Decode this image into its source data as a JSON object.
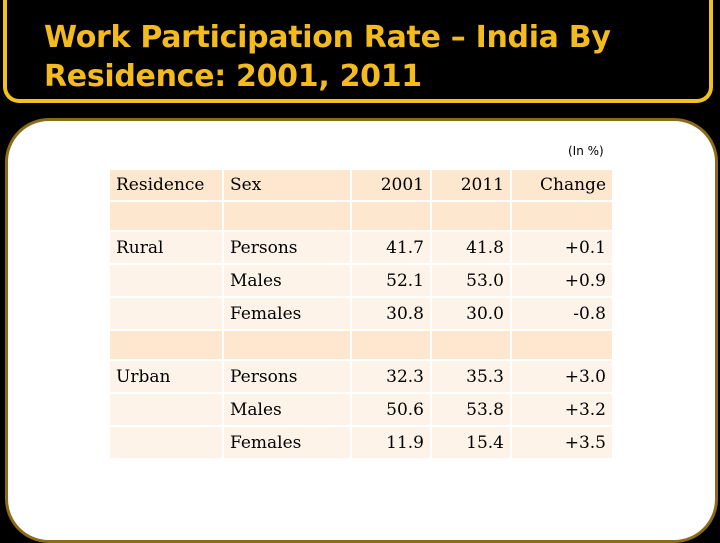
{
  "title": {
    "line1": "Work Participation Rate – India By",
    "line2": "Residence: 2001, 2011"
  },
  "unit_note": "(In %)",
  "table": {
    "headers": [
      "Residence",
      "Sex",
      "2001",
      "2011",
      "Change"
    ],
    "groups": [
      {
        "residence": "Rural",
        "rows": [
          {
            "sex": "Persons",
            "y2001": "41.7",
            "y2011": "41.8",
            "change": "+0.1"
          },
          {
            "sex": "Males",
            "y2001": "52.1",
            "y2011": "53.0",
            "change": "+0.9"
          },
          {
            "sex": "Females",
            "y2001": "30.8",
            "y2011": "30.0",
            "change": "-0.8"
          }
        ]
      },
      {
        "residence": "Urban",
        "rows": [
          {
            "sex": "Persons",
            "y2001": "32.3",
            "y2011": "35.3",
            "change": "+3.0"
          },
          {
            "sex": "Males",
            "y2001": "50.6",
            "y2011": "53.8",
            "change": "+3.2"
          },
          {
            "sex": "Females",
            "y2001": "11.9",
            "y2011": "15.4",
            "change": "+3.5"
          }
        ]
      }
    ]
  },
  "colors": {
    "title_text": "#f4bb1e",
    "title_border": "#f1c21b",
    "background": "#000000",
    "header_fill": "#fde7ce",
    "row_fill": "#fdf3e9"
  }
}
